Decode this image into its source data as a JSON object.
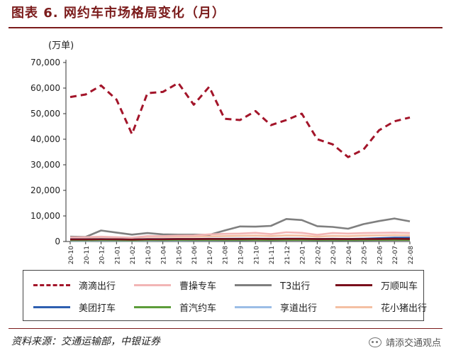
{
  "figure_title": "图表 6. 网约车市场格局变化（月）",
  "source": "资料来源：交通运输部，中银证券",
  "watermark": "靖添交通观点",
  "chart_data": {
    "type": "line",
    "ylabel": "(万单)",
    "ylim": [
      0,
      70000
    ],
    "yticks": [
      0,
      10000,
      20000,
      30000,
      40000,
      50000,
      60000,
      70000
    ],
    "ytick_labels": [
      "0",
      "10,000",
      "20,000",
      "30,000",
      "40,000",
      "50,000",
      "60,000",
      "70,000"
    ],
    "categories": [
      "20-10",
      "20-11",
      "20-12",
      "21-01",
      "21-02",
      "21-03",
      "21-04",
      "21-05",
      "21-06",
      "21-07",
      "21-08",
      "21-09",
      "21-10",
      "21-11",
      "21-12",
      "22-01",
      "22-02",
      "22-03",
      "22-04",
      "22-05",
      "22-06",
      "22-07",
      "22-08"
    ],
    "legend_position": "bottom",
    "series": [
      {
        "name": "滴滴出行",
        "color": "#a3152a",
        "dashed": true,
        "values": [
          56500,
          57500,
          61000,
          55500,
          42000,
          58000,
          58500,
          62000,
          53500,
          60500,
          48000,
          47500,
          51000,
          45500,
          47500,
          50000,
          40000,
          38000,
          33000,
          36000,
          43500,
          47000,
          48500
        ]
      },
      {
        "name": "曹操专车",
        "color": "#f2b5b5",
        "dashed": false,
        "values": [
          1600,
          1700,
          1900,
          1700,
          1500,
          2100,
          2100,
          2300,
          2400,
          2800,
          3000,
          3100,
          3400,
          2900,
          3600,
          3400,
          2600,
          3300,
          3100,
          3300,
          3400,
          3500,
          3300
        ]
      },
      {
        "name": "T3出行",
        "color": "#7f7f7f",
        "dashed": false,
        "values": [
          1900,
          1800,
          4300,
          3500,
          2700,
          3300,
          2800,
          2700,
          2700,
          2600,
          4300,
          5900,
          5800,
          6100,
          8800,
          8400,
          6000,
          5700,
          5000,
          6800,
          8000,
          9000,
          7900
        ]
      },
      {
        "name": "万顺叫车",
        "color": "#7a0f1c",
        "dashed": false,
        "values": [
          800,
          800,
          900,
          850,
          750,
          900,
          900,
          950,
          950,
          1000,
          1000,
          1000,
          1050,
          1000,
          1050,
          1050,
          950,
          1000,
          950,
          1000,
          1000,
          1050,
          1000
        ]
      },
      {
        "name": "美团打车",
        "color": "#2e5fb0",
        "dashed": false,
        "values": [
          900,
          900,
          950,
          900,
          800,
          950,
          950,
          1000,
          1000,
          1050,
          1050,
          1100,
          1100,
          1050,
          1100,
          1100,
          1000,
          1050,
          1000,
          1100,
          1300,
          1500,
          1500
        ]
      },
      {
        "name": "首汽约车",
        "color": "#5c9c3a",
        "dashed": false,
        "values": [
          500,
          500,
          550,
          500,
          450,
          550,
          550,
          600,
          600,
          600,
          600,
          650,
          650,
          600,
          650,
          650,
          600,
          600,
          550,
          600,
          650,
          650,
          650
        ]
      },
      {
        "name": "享道出行",
        "color": "#9bbde6",
        "dashed": false,
        "values": [
          300,
          300,
          350,
          320,
          300,
          350,
          380,
          400,
          420,
          450,
          480,
          500,
          550,
          520,
          560,
          560,
          500,
          520,
          480,
          520,
          560,
          600,
          600
        ]
      },
      {
        "name": "花小猪出行",
        "color": "#f4c0a3",
        "dashed": false,
        "values": [
          1000,
          1400,
          1800,
          1600,
          1400,
          1900,
          1800,
          1900,
          1900,
          2000,
          2100,
          2200,
          2300,
          2100,
          2400,
          2300,
          1900,
          2200,
          2100,
          2300,
          2400,
          2500,
          2400
        ]
      }
    ]
  }
}
